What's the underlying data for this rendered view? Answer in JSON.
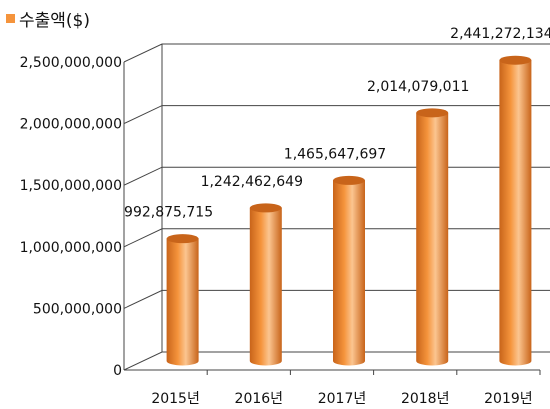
{
  "chart_data": {
    "type": "bar",
    "categories": [
      "2015년",
      "2016년",
      "2017년",
      "2018년",
      "2019년"
    ],
    "series": [
      {
        "name": "수출액($)",
        "values": [
          992875715,
          1242462649,
          1465647697,
          2014079011,
          2441272134
        ],
        "labels": [
          "992,875,715",
          "1,242,462,649",
          "1,465,647,697",
          "2,014,079,011",
          "2,441,272,134"
        ]
      }
    ],
    "yticks": [
      "0",
      "500,000,000",
      "1,000,000,000",
      "1,500,000,000",
      "2,000,000,000",
      "2,500,000,000"
    ],
    "ylim": [
      0,
      2500000000
    ],
    "grid": true,
    "legend": "top-left",
    "colors": {
      "bar": "#f5943c",
      "bar_dark": "#c8641a",
      "bar_light": "#fbc590",
      "grid": "#444444"
    }
  }
}
